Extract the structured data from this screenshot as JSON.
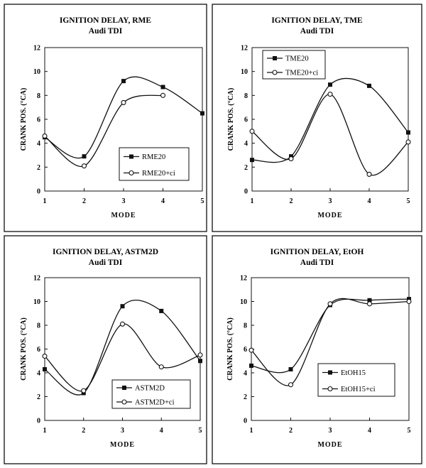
{
  "chart_data": [
    {
      "type": "line",
      "title": "IGNITION DELAY, RME",
      "subtitle": "Audi TDI",
      "xlabel": "MODE",
      "ylabel": "CRANK POS. (°CA)",
      "x": [
        1,
        2,
        3,
        4,
        5
      ],
      "xlim": [
        1,
        5
      ],
      "ylim": [
        0,
        12
      ],
      "yticks": [
        0,
        2,
        4,
        6,
        8,
        10,
        12
      ],
      "grid": false,
      "legend_position": "lower-right",
      "series": [
        {
          "name": "RME20",
          "marker": "square",
          "x": [
            1,
            2,
            3,
            4,
            5
          ],
          "values": [
            4.5,
            2.9,
            9.2,
            8.7,
            6.5
          ]
        },
        {
          "name": "RME20+ci",
          "marker": "circle",
          "x": [
            1,
            2,
            3,
            4
          ],
          "values": [
            4.6,
            2.1,
            7.4,
            8.0
          ]
        }
      ]
    },
    {
      "type": "line",
      "title": "IGNITION DELAY, TME",
      "subtitle": "Audi TDI",
      "xlabel": "MODE",
      "ylabel": "CRANK POS. (°CA)",
      "x": [
        1,
        2,
        3,
        4,
        5
      ],
      "xlim": [
        1,
        5
      ],
      "ylim": [
        0,
        12
      ],
      "yticks": [
        0,
        2,
        4,
        6,
        8,
        10,
        12
      ],
      "grid": false,
      "legend_position": "top-left",
      "series": [
        {
          "name": "TME20",
          "marker": "square",
          "x": [
            1,
            2,
            3,
            4,
            5
          ],
          "values": [
            2.6,
            2.9,
            8.9,
            8.8,
            4.9
          ]
        },
        {
          "name": "TME20+ci",
          "marker": "circle",
          "x": [
            1,
            2,
            3,
            4,
            5
          ],
          "values": [
            5.0,
            2.7,
            8.1,
            1.4,
            4.1
          ]
        }
      ]
    },
    {
      "type": "line",
      "title": "IGNITION DELAY, ASTM2D",
      "subtitle": "Audi TDI",
      "xlabel": "MODE",
      "ylabel": "CRANK POS. (°CA)",
      "x": [
        1,
        2,
        3,
        4,
        5
      ],
      "xlim": [
        1,
        5
      ],
      "ylim": [
        0,
        12
      ],
      "yticks": [
        0,
        2,
        4,
        6,
        8,
        10,
        12
      ],
      "grid": false,
      "legend_position": "lower-right",
      "series": [
        {
          "name": "ASTM2D",
          "marker": "square",
          "x": [
            1,
            2,
            3,
            4,
            5
          ],
          "values": [
            4.3,
            2.3,
            9.6,
            9.2,
            5.0
          ]
        },
        {
          "name": "ASTM2D+ci",
          "marker": "circle",
          "x": [
            1,
            2,
            3,
            4,
            5
          ],
          "values": [
            5.4,
            2.5,
            8.1,
            4.5,
            5.5
          ]
        }
      ]
    },
    {
      "type": "line",
      "title": "IGNITION DELAY, EtOH",
      "subtitle": "Audi TDI",
      "xlabel": "MODE",
      "ylabel": "CRANK POS. (°CA)",
      "x": [
        1,
        2,
        3,
        4,
        5
      ],
      "xlim": [
        1,
        5
      ],
      "ylim": [
        0,
        12
      ],
      "yticks": [
        0,
        2,
        4,
        6,
        8,
        10,
        12
      ],
      "grid": false,
      "legend_position": "lower-right",
      "series": [
        {
          "name": "EtOH15",
          "marker": "square",
          "x": [
            1,
            2,
            3,
            4,
            5
          ],
          "values": [
            4.6,
            4.3,
            9.7,
            10.1,
            10.2
          ]
        },
        {
          "name": "EtOH15+ci",
          "marker": "circle",
          "x": [
            1,
            2,
            3,
            4,
            5
          ],
          "values": [
            5.9,
            3.0,
            9.8,
            9.8,
            10.0
          ]
        }
      ]
    }
  ]
}
